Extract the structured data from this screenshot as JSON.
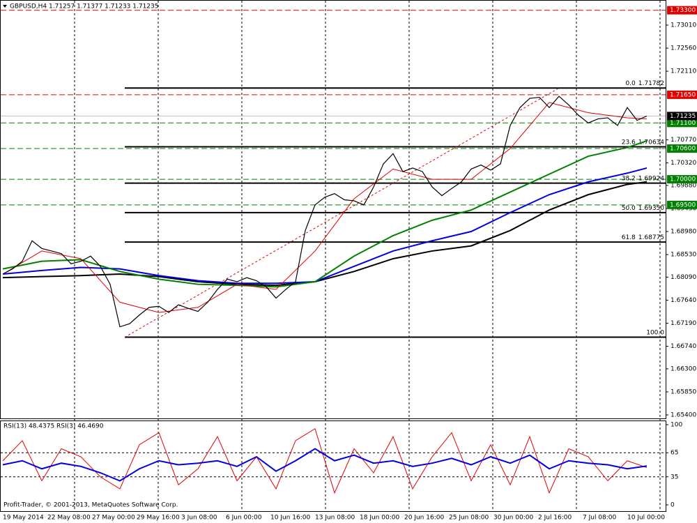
{
  "chart_data": [
    {
      "type": "line",
      "title": "GBPUSD,H4  1.71257 1.71377 1.71233 1.71235",
      "xlim": [
        0,
        68
      ],
      "ylim": [
        1.65332,
        1.735
      ],
      "yticks": [
        {
          "value": 1.7301,
          "label": "1.73010"
        },
        {
          "value": 1.7256,
          "label": "1.72560"
        },
        {
          "value": 1.7211,
          "label": "1.72110"
        },
        {
          "value": 1.7077,
          "label": "1.70770"
        },
        {
          "value": 1.7032,
          "label": "1.70320"
        },
        {
          "value": 1.6988,
          "label": "1.69880"
        },
        {
          "value": 1.6943,
          "label": "1.69430"
        },
        {
          "value": 1.6898,
          "label": "1.68980"
        },
        {
          "value": 1.6853,
          "label": "1.68530"
        },
        {
          "value": 1.6809,
          "label": "1.68090"
        },
        {
          "value": 1.6764,
          "label": "1.67640"
        },
        {
          "value": 1.6719,
          "label": "1.67190"
        },
        {
          "value": 1.6674,
          "label": "1.66740"
        },
        {
          "value": 1.663,
          "label": "1.66300"
        },
        {
          "value": 1.6585,
          "label": "1.65850"
        },
        {
          "value": 1.654,
          "label": "1.65400"
        }
      ],
      "x_labels": [
        "19 May 2014",
        "22 May 08:00",
        "27 May 00:00",
        "29 May 16:00",
        "3 Jun 08:00",
        "6 Jun 00:00",
        "10 Jun 16:00",
        "13 Jun 08:00",
        "18 Jun 00:00",
        "20 Jun 16:00",
        "25 Jun 08:00",
        "30 Jun 00:00",
        "2 Jul 16:00",
        "7 Jul 08:00",
        "10 Jul 00:00"
      ],
      "color": "#000000",
      "values": [
        1.6815,
        1.6825,
        1.684,
        1.688,
        1.6865,
        1.686,
        1.6855,
        1.6835,
        1.684,
        1.685,
        1.683,
        1.6795,
        1.6712,
        1.6718,
        1.6735,
        1.675,
        1.6752,
        1.674,
        1.6755,
        1.6748,
        1.6742,
        1.676,
        1.6785,
        1.6805,
        1.68,
        1.6808,
        1.6802,
        1.679,
        1.6768,
        1.6785,
        1.68,
        1.69,
        1.695,
        1.6965,
        1.6972,
        1.696,
        1.6958,
        1.695,
        1.6985,
        1.703,
        1.705,
        1.7015,
        1.7022,
        1.7015,
        1.6985,
        1.6968,
        1.6982,
        1.6995,
        1.702,
        1.7028,
        1.7018,
        1.703,
        1.7105,
        1.714,
        1.7158,
        1.716,
        1.714,
        1.7162,
        1.7145,
        1.7125,
        1.711,
        1.7118,
        1.712,
        1.7105,
        1.714,
        1.7115,
        1.71235
      ],
      "ma_x": [
        0,
        4,
        8,
        12,
        16,
        20,
        24,
        28,
        32,
        36,
        40,
        44,
        48,
        52,
        56,
        60,
        64,
        66
      ],
      "ma_lines": [
        {
          "color": "#000000",
          "values": [
            1.6808,
            1.681,
            1.6812,
            1.6815,
            1.681,
            1.68,
            1.6795,
            1.6793,
            1.68,
            1.682,
            1.6845,
            1.686,
            1.687,
            1.69,
            1.694,
            1.697,
            1.699,
            1.6995
          ]
        },
        {
          "color": "#0000e0",
          "values": [
            1.6815,
            1.6822,
            1.6828,
            1.6825,
            1.6812,
            1.6802,
            1.6797,
            1.6797,
            1.68,
            1.683,
            1.686,
            1.688,
            1.6898,
            1.6935,
            1.697,
            1.6995,
            1.7012,
            1.7022
          ]
        },
        {
          "color": "#008000",
          "values": [
            1.6825,
            1.684,
            1.6843,
            1.682,
            1.6805,
            1.6795,
            1.6793,
            1.679,
            1.68,
            1.685,
            1.689,
            1.692,
            1.694,
            1.6975,
            1.701,
            1.7045,
            1.7062,
            1.7075
          ]
        },
        {
          "color": "#e00000",
          "values": [
            1.6815,
            1.686,
            1.6845,
            1.676,
            1.674,
            1.675,
            1.6795,
            1.6785,
            1.686,
            1.6962,
            1.702,
            1.7,
            1.7,
            1.706,
            1.715,
            1.713,
            1.712,
            1.7118
          ]
        }
      ],
      "levels": [
        {
          "value": 1.733,
          "label": "1.73300",
          "color": "#e00000"
        },
        {
          "value": 1.7165,
          "label": "1.71650",
          "color": "#e00000"
        },
        {
          "value": 1.711,
          "label": "1.71100",
          "color": "#008000"
        },
        {
          "value": 1.706,
          "label": "1.70600",
          "color": "#008000"
        },
        {
          "value": 1.7,
          "label": "1.70000",
          "color": "#008000"
        },
        {
          "value": 1.695,
          "label": "1.69500",
          "color": "#008000"
        }
      ],
      "current": {
        "value": 1.71235,
        "label": "1.71235"
      },
      "fib": {
        "x": [
          12.5,
          57
        ],
        "trend_values": [
          1.66918,
          1.71782
        ],
        "levels": [
          {
            "ratio": "0.0",
            "label": "1.71782",
            "value": 1.71782
          },
          {
            "ratio": "23.6",
            "label": "1.70634",
            "value": 1.70634
          },
          {
            "ratio": "38.2",
            "label": "1.69924",
            "value": 1.69924
          },
          {
            "ratio": "50.0",
            "label": "1.69350",
            "value": 1.6935
          },
          {
            "ratio": "61.8",
            "label": "1.68775",
            "value": 1.68775
          },
          {
            "ratio": "100.0",
            "value": 1.66918
          }
        ]
      },
      "footer": "Profit-Trader, © 2001-2013, MetaQuotes Software Corp."
    },
    {
      "type": "line",
      "title": "RSI(13) 48.4375  RSI(3) 46.4690",
      "xlim": [
        0,
        68
      ],
      "ylim": [
        -7.8,
        105.2
      ],
      "yticks": [
        100,
        65,
        35,
        0
      ],
      "levels": [
        65,
        35
      ],
      "x": [
        0,
        2,
        4,
        6,
        8,
        10,
        12,
        14,
        16,
        18,
        20,
        22,
        24,
        26,
        28,
        30,
        32,
        34,
        36,
        38,
        40,
        42,
        44,
        46,
        48,
        50,
        52,
        54,
        56,
        58,
        60,
        62,
        64,
        66
      ],
      "series": [
        {
          "color": "#e00000",
          "values": [
            55,
            80,
            30,
            70,
            60,
            35,
            20,
            75,
            90,
            25,
            45,
            85,
            30,
            60,
            20,
            80,
            95,
            15,
            70,
            40,
            85,
            20,
            60,
            90,
            30,
            75,
            25,
            85,
            15,
            70,
            60,
            30,
            55,
            46.469
          ]
        },
        {
          "color": "#0000e0",
          "values": [
            50,
            55,
            45,
            52,
            48,
            40,
            30,
            45,
            55,
            50,
            52,
            55,
            48,
            60,
            42,
            55,
            70,
            55,
            62,
            52,
            55,
            48,
            52,
            58,
            50,
            60,
            52,
            62,
            45,
            55,
            52,
            50,
            45,
            48.4375
          ]
        }
      ]
    }
  ]
}
